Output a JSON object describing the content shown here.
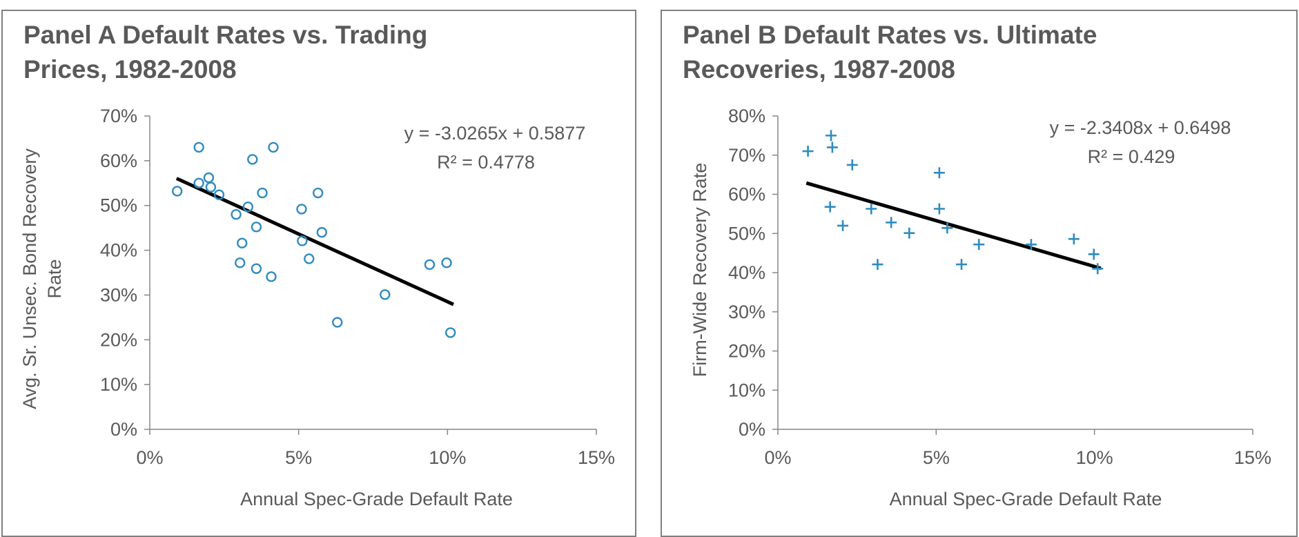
{
  "chart_data": [
    {
      "type": "scatter",
      "title": "Panel A Default Rates vs. Trading Prices, 1982-2008",
      "xlabel": "Annual Spec-Grade Default Rate",
      "ylabel": [
        "Avg. Sr. Unsec. Bond Recovery",
        "Rate"
      ],
      "xlim": [
        0,
        0.15
      ],
      "ylim": [
        0,
        0.7
      ],
      "xticks": [
        0,
        0.05,
        0.1,
        0.15
      ],
      "xtick_labels": [
        "0%",
        "5%",
        "10%",
        "15%"
      ],
      "yticks": [
        0,
        0.1,
        0.2,
        0.3,
        0.4,
        0.5,
        0.6,
        0.7
      ],
      "ytick_labels": [
        "0%",
        "10%",
        "20%",
        "30%",
        "40%",
        "50%",
        "60%",
        "70%"
      ],
      "marker": "circle",
      "marker_color": "#2e8bc0",
      "line_color": "#000000",
      "points": [
        {
          "x": 0.0092,
          "y": 0.532
        },
        {
          "x": 0.0165,
          "y": 0.63
        },
        {
          "x": 0.0165,
          "y": 0.55
        },
        {
          "x": 0.0198,
          "y": 0.562
        },
        {
          "x": 0.0205,
          "y": 0.541
        },
        {
          "x": 0.0233,
          "y": 0.524
        },
        {
          "x": 0.029,
          "y": 0.48
        },
        {
          "x": 0.0303,
          "y": 0.372
        },
        {
          "x": 0.031,
          "y": 0.416
        },
        {
          "x": 0.033,
          "y": 0.497
        },
        {
          "x": 0.0345,
          "y": 0.603
        },
        {
          "x": 0.0358,
          "y": 0.452
        },
        {
          "x": 0.0358,
          "y": 0.359
        },
        {
          "x": 0.0378,
          "y": 0.528
        },
        {
          "x": 0.0408,
          "y": 0.341
        },
        {
          "x": 0.0415,
          "y": 0.63
        },
        {
          "x": 0.051,
          "y": 0.492
        },
        {
          "x": 0.0512,
          "y": 0.421
        },
        {
          "x": 0.0535,
          "y": 0.381
        },
        {
          "x": 0.0565,
          "y": 0.528
        },
        {
          "x": 0.0578,
          "y": 0.44
        },
        {
          "x": 0.063,
          "y": 0.239
        },
        {
          "x": 0.079,
          "y": 0.301
        },
        {
          "x": 0.094,
          "y": 0.368
        },
        {
          "x": 0.0997,
          "y": 0.372
        },
        {
          "x": 0.101,
          "y": 0.216
        }
      ],
      "trendline": {
        "slope": -3.0265,
        "intercept": 0.5877,
        "x_range": [
          0.009,
          0.102
        ]
      },
      "equation": "y = -3.0265x + 0.5877",
      "r_squared": "R² = 0.4778"
    },
    {
      "type": "scatter",
      "title": "Panel B Default Rates vs. Ultimate Recoveries, 1987-2008",
      "xlabel": "Annual Spec-Grade Default Rate",
      "ylabel": [
        "Firm-Wide Recovery Rate"
      ],
      "xlim": [
        0,
        0.15
      ],
      "ylim": [
        0,
        0.8
      ],
      "xticks": [
        0,
        0.05,
        0.1,
        0.15
      ],
      "xtick_labels": [
        "0%",
        "5%",
        "10%",
        "15%"
      ],
      "yticks": [
        0,
        0.1,
        0.2,
        0.3,
        0.4,
        0.5,
        0.6,
        0.7,
        0.8
      ],
      "ytick_labels": [
        "0%",
        "10%",
        "20%",
        "30%",
        "40%",
        "50%",
        "60%",
        "70%",
        "80%"
      ],
      "marker": "plus",
      "marker_color": "#2e8bc0",
      "line_color": "#000000",
      "points": [
        {
          "x": 0.0095,
          "y": 0.71
        },
        {
          "x": 0.0168,
          "y": 0.75
        },
        {
          "x": 0.0172,
          "y": 0.72
        },
        {
          "x": 0.0165,
          "y": 0.568
        },
        {
          "x": 0.0205,
          "y": 0.52
        },
        {
          "x": 0.0235,
          "y": 0.675
        },
        {
          "x": 0.0295,
          "y": 0.563
        },
        {
          "x": 0.0315,
          "y": 0.421
        },
        {
          "x": 0.0358,
          "y": 0.528
        },
        {
          "x": 0.0415,
          "y": 0.501
        },
        {
          "x": 0.051,
          "y": 0.655
        },
        {
          "x": 0.051,
          "y": 0.563
        },
        {
          "x": 0.0535,
          "y": 0.514
        },
        {
          "x": 0.058,
          "y": 0.421
        },
        {
          "x": 0.0635,
          "y": 0.472
        },
        {
          "x": 0.08,
          "y": 0.472
        },
        {
          "x": 0.0935,
          "y": 0.486
        },
        {
          "x": 0.0998,
          "y": 0.447
        },
        {
          "x": 0.101,
          "y": 0.41
        }
      ],
      "trendline": {
        "slope": -2.3408,
        "intercept": 0.6498,
        "x_range": [
          0.009,
          0.102
        ]
      },
      "equation": "y = -2.3408x + 0.6498",
      "r_squared": "R² = 0.429"
    }
  ]
}
